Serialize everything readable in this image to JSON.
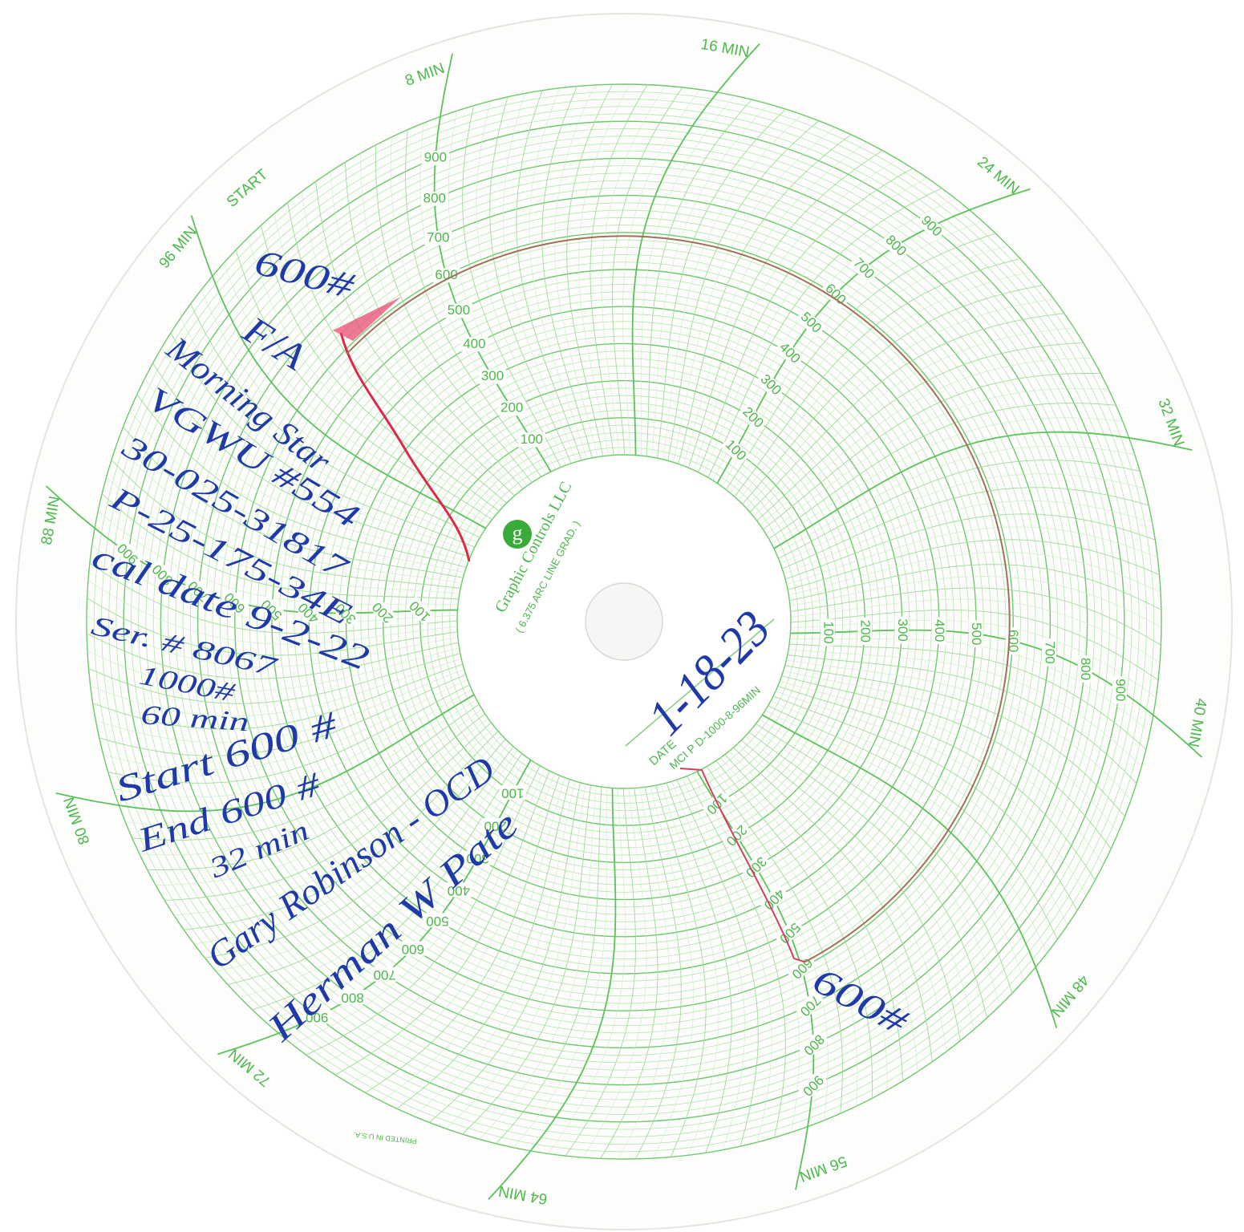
{
  "chart_paper": {
    "start_label": "START",
    "time_labels": [
      "8 MIN",
      "16 MIN",
      "24 MIN",
      "32 MIN",
      "40 MIN",
      "48 MIN",
      "56 MIN",
      "64 MIN",
      "72 MIN",
      "80 MIN",
      "88 MIN",
      "96 MIN"
    ],
    "scale_labels": [
      "100",
      "200",
      "300",
      "400",
      "500",
      "600",
      "700",
      "800",
      "900"
    ],
    "brand_logo": "g",
    "brand": "Graphic Controls LLC",
    "graduation": "( 6.375 ARC LINE GRAD. )",
    "date_label": "DATE",
    "model": "MCI P D-1000-8-96MIN",
    "printed": "PRINTED IN U.S.A."
  },
  "handwriting": {
    "top_pressure": "600#",
    "notes": [
      "F/A",
      "Morning Star",
      "VGWU #554",
      "30-025-31817",
      "P-25-175-34E",
      "cal date 9-2-22",
      "Ser. # 8067",
      "1000#",
      "60 min",
      "Start 600 #",
      "End 600 #",
      "32 min",
      "Gary Robinson - OCD",
      "Herman W Pate"
    ],
    "date": "1-18-23",
    "end_pressure": "600#"
  }
}
